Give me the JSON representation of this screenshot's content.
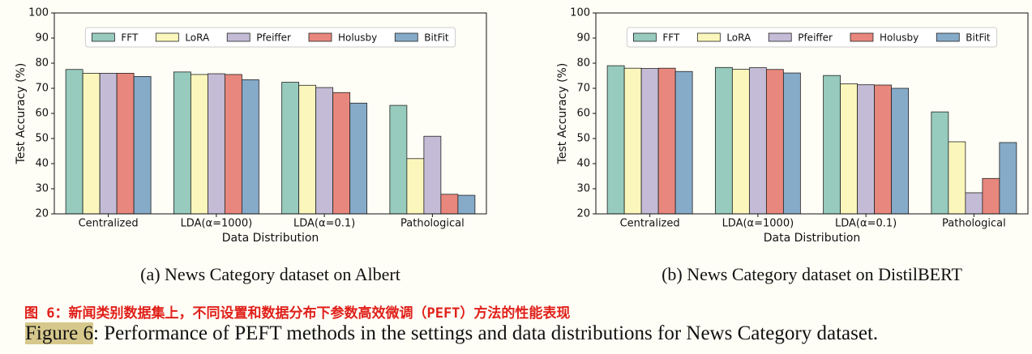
{
  "chart_data": [
    {
      "type": "bar",
      "caption": "(a) News Category dataset on Albert",
      "x_label": "Data Distribution",
      "y_label": "Test Accuracy (%)",
      "categories": [
        "Centralized",
        "LDA(α=1000)",
        "LDA(α=0.1)",
        "Pathological"
      ],
      "series": [
        {
          "name": "FFT",
          "color": "#96cbbd",
          "values": [
            77.5,
            76.5,
            72.4,
            63.2
          ]
        },
        {
          "name": "LoRA",
          "color": "#fbf7bc",
          "values": [
            76,
            75.5,
            71.2,
            42
          ]
        },
        {
          "name": "Pfeiffer",
          "color": "#c4bcd6",
          "values": [
            76,
            75.8,
            70.3,
            50.9
          ]
        },
        {
          "name": "Holusby",
          "color": "#e8877d",
          "values": [
            76,
            75.5,
            68.3,
            27.8
          ]
        },
        {
          "name": "BitFit",
          "color": "#86abc9",
          "values": [
            74.7,
            73.4,
            64.1,
            27.4
          ]
        }
      ],
      "ylim": [
        20,
        100
      ],
      "yticks": [
        20,
        30,
        40,
        50,
        60,
        70,
        80,
        90,
        100
      ],
      "legend": "upper center"
    },
    {
      "type": "bar",
      "caption": "(b) News Category dataset on DistilBERT",
      "x_label": "Data Distribution",
      "y_label": "Test Accuracy (%)",
      "categories": [
        "Centralized",
        "LDA(α=1000)",
        "LDA(α=0.1)",
        "Pathological"
      ],
      "series": [
        {
          "name": "FFT",
          "color": "#96cbbd",
          "values": [
            79,
            78.3,
            75.1,
            60.6
          ]
        },
        {
          "name": "LoRA",
          "color": "#fbf7bc",
          "values": [
            78,
            77.6,
            71.8,
            48.7
          ]
        },
        {
          "name": "Pfeiffer",
          "color": "#c4bcd6",
          "values": [
            77.9,
            78.2,
            71.4,
            28.4
          ]
        },
        {
          "name": "Holusby",
          "color": "#e8877d",
          "values": [
            78,
            77.5,
            71.3,
            34.1
          ]
        },
        {
          "name": "BitFit",
          "color": "#86abc9",
          "values": [
            76.7,
            76.1,
            70,
            48.4
          ]
        }
      ],
      "ylim": [
        20,
        100
      ],
      "yticks": [
        20,
        30,
        40,
        50,
        60,
        70,
        80,
        90,
        100
      ],
      "legend": "upper center"
    }
  ],
  "chinese_caption": "图 6：新闻类别数据集上，不同设置和数据分布下参数高效微调（PEFT）方法的性能表现",
  "figure_caption": {
    "label": "Figure 6",
    "text": ": Performance of PEFT methods in the settings and data distributions for News Category dataset."
  }
}
